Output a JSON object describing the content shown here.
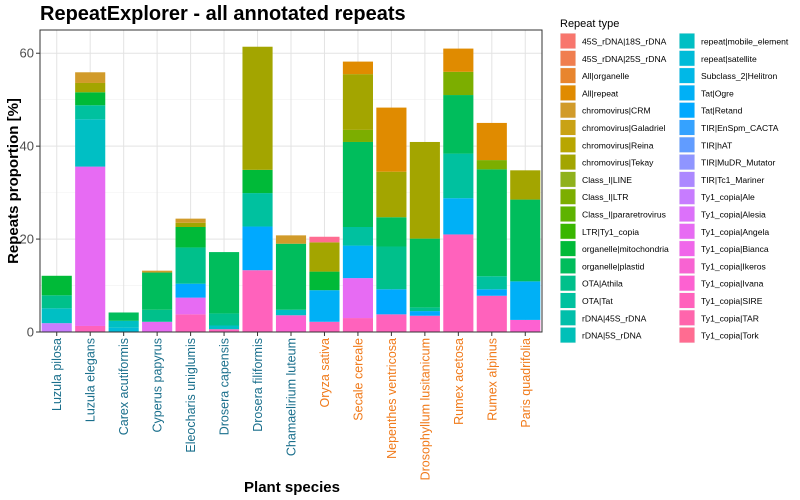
{
  "chart_data": {
    "type": "bar",
    "stacked": true,
    "title": "RepeatExplorer - all annotated repeats",
    "xlabel": "Plant species",
    "ylabel": "Repeats proportion [%]",
    "ylim": [
      0,
      65
    ],
    "yticks": [
      0,
      20,
      40,
      60
    ],
    "grid": true,
    "legend_title": "Repeat type",
    "legend_position": "right",
    "tick_label_colors": {
      "group1": "#1a6f8c",
      "group2": "#f07a1a"
    },
    "categories": [
      "Luzula pilosa",
      "Luzula elegans",
      "Carex acutiformis",
      "Cyperus papyrus",
      "Eleocharis uniglumis",
      "Drosera capensis",
      "Drosera filiformis",
      "Chamaelirium luteum",
      "Oryza sativa",
      "Secale cereale",
      "Nepenthes ventricosa",
      "Drosophyllum lusitanicum",
      "Rumex acetosa",
      "Rumex alpinus",
      "Paris quadrifolia"
    ],
    "category_groups": [
      "group1",
      "group1",
      "group1",
      "group1",
      "group1",
      "group1",
      "group1",
      "group1",
      "group2",
      "group2",
      "group2",
      "group2",
      "group2",
      "group2",
      "group2"
    ],
    "legend": [
      {
        "label": "45S_rDNA|18S_rDNA",
        "color": "#f8766d"
      },
      {
        "label": "45S_rDNA|25S_rDNA",
        "color": "#f07e4f"
      },
      {
        "label": "All|organelle",
        "color": "#e8852e"
      },
      {
        "label": "All|repeat",
        "color": "#e08b00"
      },
      {
        "label": "chromovirus|CRM",
        "color": "#d19b2a"
      },
      {
        "label": "chromovirus|Galadriel",
        "color": "#c9a214"
      },
      {
        "label": "chromovirus|Reina",
        "color": "#b8a600"
      },
      {
        "label": "chromovirus|Tekay",
        "color": "#a3a500"
      },
      {
        "label": "Class_I|LINE",
        "color": "#8fb11c"
      },
      {
        "label": "Class_I|LTR",
        "color": "#7cae00"
      },
      {
        "label": "Class_I|pararetrovirus",
        "color": "#5eb300"
      },
      {
        "label": "LTR|Ty1_copia",
        "color": "#39b600"
      },
      {
        "label": "organelle|mitochondria",
        "color": "#00ba38"
      },
      {
        "label": "organelle|plastid",
        "color": "#00bd5c"
      },
      {
        "label": "OTA|Athila",
        "color": "#00c08b"
      },
      {
        "label": "OTA|Tat",
        "color": "#00c19f"
      },
      {
        "label": "rDNA|45S_rDNA",
        "color": "#00bfaa"
      },
      {
        "label": "rDNA|5S_rDNA",
        "color": "#00c0b8"
      },
      {
        "label": "repeat|mobile_element",
        "color": "#00bfc4"
      },
      {
        "label": "repeat|satellite",
        "color": "#00bbd8"
      },
      {
        "label": "Subclass_2|Helitron",
        "color": "#00b8e7"
      },
      {
        "label": "Tat|Ogre",
        "color": "#00b0f6"
      },
      {
        "label": "Tat|Retand",
        "color": "#00a9ff"
      },
      {
        "label": "TIR|EnSpm_CACTA",
        "color": "#35a2ff"
      },
      {
        "label": "TIR|hAT",
        "color": "#619cff"
      },
      {
        "label": "TIR|MuDR_Mutator",
        "color": "#8f95ff"
      },
      {
        "label": "TIR|Tc1_Mariner",
        "color": "#ac88ff"
      },
      {
        "label": "Ty1_copia|Ale",
        "color": "#c77cff"
      },
      {
        "label": "Ty1_copia|Alesia",
        "color": "#dc71fa"
      },
      {
        "label": "Ty1_copia|Angela",
        "color": "#e76bf3"
      },
      {
        "label": "Ty1_copia|Bianca",
        "color": "#f066ea"
      },
      {
        "label": "Ty1_copia|Ikeros",
        "color": "#f863d2"
      },
      {
        "label": "Ty1_copia|Ivana",
        "color": "#fd61d1"
      },
      {
        "label": "Ty1_copia|SIRE",
        "color": "#ff62bc"
      },
      {
        "label": "Ty1_copia|TAR",
        "color": "#ff65ac"
      },
      {
        "label": "Ty1_copia|Tork",
        "color": "#ff6c91"
      }
    ],
    "bars": [
      {
        "species": "Luzula pilosa",
        "segments": [
          [
            "Ty1_copia|Ale",
            1.9
          ],
          [
            "repeat|mobile_element",
            3.2
          ],
          [
            "OTA|Athila",
            2.8
          ],
          [
            "organelle|mitochondria",
            4.2
          ]
        ]
      },
      {
        "species": "Luzula elegans",
        "segments": [
          [
            "Ty1_copia|SIRE",
            1.3
          ],
          [
            "Ty1_copia|Angela",
            34.3
          ],
          [
            "repeat|mobile_element",
            10.2
          ],
          [
            "OTA|Tat",
            3.0
          ],
          [
            "organelle|mitochondria",
            2.8
          ],
          [
            "chromovirus|Tekay",
            2.0
          ],
          [
            "chromovirus|CRM",
            2.3
          ]
        ]
      },
      {
        "species": "Carex acutiformis",
        "segments": [
          [
            "repeat|satellite",
            0.9
          ],
          [
            "repeat|mobile_element",
            1.5
          ],
          [
            "organelle|plastid",
            1.8
          ]
        ]
      },
      {
        "species": "Cyperus papyrus",
        "segments": [
          [
            "Ty1_copia|Angela",
            2.2
          ],
          [
            "OTA|Athila",
            2.6
          ],
          [
            "organelle|plastid",
            8.0
          ],
          [
            "chromovirus|CRM",
            0.4
          ]
        ]
      },
      {
        "species": "Eleocharis uniglumis",
        "segments": [
          [
            "Ty1_copia|SIRE",
            3.8
          ],
          [
            "Ty1_copia|Angela",
            3.6
          ],
          [
            "Tat|Retand",
            3.0
          ],
          [
            "OTA|Athila",
            7.8
          ],
          [
            "organelle|mitochondria",
            4.4
          ],
          [
            "chromovirus|Tekay",
            0.9
          ],
          [
            "chromovirus|CRM",
            0.9
          ]
        ]
      },
      {
        "species": "Drosera capensis",
        "segments": [
          [
            "Ty1_copia|SIRE",
            0.6
          ],
          [
            "repeat|mobile_element",
            0.8
          ],
          [
            "OTA|Athila",
            2.6
          ],
          [
            "organelle|plastid",
            13.2
          ]
        ]
      },
      {
        "species": "Drosera filiformis",
        "segments": [
          [
            "Ty1_copia|SIRE",
            13.3
          ],
          [
            "Tat|Retand",
            9.4
          ],
          [
            "OTA|Tat",
            7.2
          ],
          [
            "organelle|mitochondria",
            5.0
          ],
          [
            "chromovirus|Tekay",
            26.5
          ]
        ]
      },
      {
        "species": "Chamaelirium luteum",
        "segments": [
          [
            "Ty1_copia|Ivana",
            3.6
          ],
          [
            "repeat|mobile_element",
            1.2
          ],
          [
            "organelle|plastid",
            14.2
          ],
          [
            "chromovirus|CRM",
            1.8
          ]
        ]
      },
      {
        "species": "Oryza sativa",
        "segments": [
          [
            "Ty1_copia|SIRE",
            2.2
          ],
          [
            "Tat|Ogre",
            6.8
          ],
          [
            "organelle|mitochondria",
            4.0
          ],
          [
            "chromovirus|Tekay",
            6.3
          ],
          [
            "Ty1_copia|Tork",
            1.2
          ]
        ]
      },
      {
        "species": "Secale cereale",
        "segments": [
          [
            "Ty1_copia|SIRE",
            3.0
          ],
          [
            "Ty1_copia|Angela",
            8.6
          ],
          [
            "Tat|Ogre",
            7.0
          ],
          [
            "OTA|Tat",
            4.0
          ],
          [
            "organelle|plastid",
            18.3
          ],
          [
            "Class_I|LTR",
            2.6
          ],
          [
            "chromovirus|Tekay",
            12.0
          ],
          [
            "All|repeat",
            2.7
          ]
        ]
      },
      {
        "species": "Nepenthes ventricosa",
        "segments": [
          [
            "Ty1_copia|SIRE",
            3.8
          ],
          [
            "Tat|Retand",
            5.4
          ],
          [
            "OTA|Athila",
            9.2
          ],
          [
            "organelle|plastid",
            6.3
          ],
          [
            "chromovirus|Tekay",
            9.8
          ],
          [
            "All|repeat",
            13.8
          ]
        ]
      },
      {
        "species": "Drosophyllum lusitanicum",
        "segments": [
          [
            "Ty1_copia|SIRE",
            3.5
          ],
          [
            "Tat|Retand",
            1.0
          ],
          [
            "OTA|Athila",
            0.8
          ],
          [
            "organelle|plastid",
            14.8
          ],
          [
            "chromovirus|Tekay",
            20.8
          ]
        ]
      },
      {
        "species": "Rumex acetosa",
        "segments": [
          [
            "Ty1_copia|SIRE",
            21.0
          ],
          [
            "Tat|Ogre",
            7.8
          ],
          [
            "OTA|Tat",
            9.6
          ],
          [
            "organelle|plastid",
            12.6
          ],
          [
            "Class_I|LTR",
            5.0
          ],
          [
            "All|repeat",
            5.0
          ]
        ]
      },
      {
        "species": "Rumex alpinus",
        "segments": [
          [
            "Ty1_copia|SIRE",
            7.8
          ],
          [
            "Tat|Retand",
            1.4
          ],
          [
            "OTA|Tat",
            2.8
          ],
          [
            "organelle|plastid",
            23.0
          ],
          [
            "Class_I|LTR",
            2.0
          ],
          [
            "All|repeat",
            8.0
          ]
        ]
      },
      {
        "species": "Paris quadrifolia",
        "segments": [
          [
            "Ty1_copia|Ivana",
            2.6
          ],
          [
            "Tat|Ogre",
            8.3
          ],
          [
            "organelle|plastid",
            17.6
          ],
          [
            "chromovirus|Tekay",
            6.3
          ]
        ]
      }
    ]
  }
}
